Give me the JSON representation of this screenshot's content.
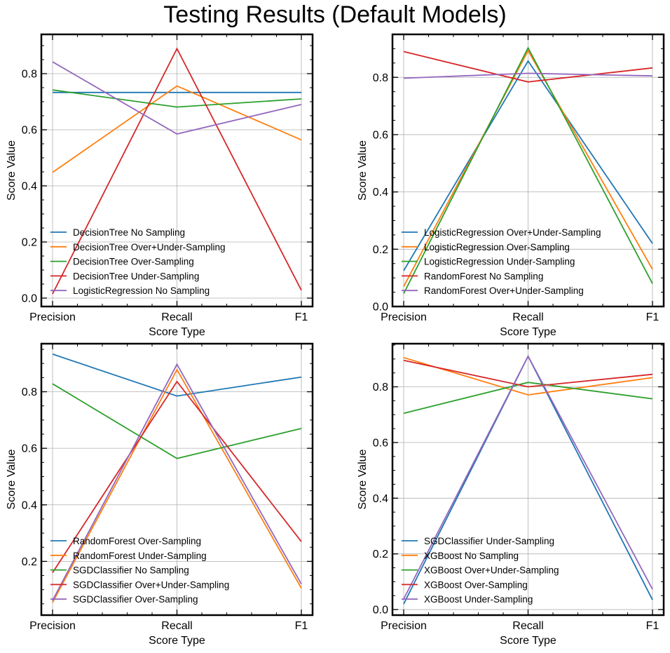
{
  "suptitle": "Testing Results (Default Models)",
  "chart_data": [
    {
      "type": "line",
      "categories": [
        "Precision",
        "Recall",
        "F1"
      ],
      "xlabel": "Score Type",
      "ylabel": "Score Value",
      "ylim": [
        -0.03,
        0.94
      ],
      "yticks": [
        "0.0",
        "0.2",
        "0.4",
        "0.6",
        "0.8"
      ],
      "grid": true,
      "legend": "lower-left",
      "series": [
        {
          "name": "DecisionTree No Sampling",
          "color": "#1f77b4",
          "values": [
            0.733,
            0.733,
            0.733
          ]
        },
        {
          "name": "DecisionTree Over+Under-Sampling",
          "color": "#ff7f0e",
          "values": [
            0.448,
            0.756,
            0.564
          ]
        },
        {
          "name": "DecisionTree Over-Sampling",
          "color": "#2ca02c",
          "values": [
            0.742,
            0.681,
            0.71
          ]
        },
        {
          "name": "DecisionTree Under-Sampling",
          "color": "#d62728",
          "values": [
            0.015,
            0.889,
            0.028
          ]
        },
        {
          "name": "LogisticRegression No Sampling",
          "color": "#9467bd",
          "values": [
            0.842,
            0.585,
            0.69
          ]
        }
      ]
    },
    {
      "type": "line",
      "categories": [
        "Precision",
        "Recall",
        "F1"
      ],
      "xlabel": "Score Type",
      "ylabel": "Score Value",
      "ylim": [
        0.0,
        0.95
      ],
      "yticks": [
        "0.0",
        "0.2",
        "0.4",
        "0.6",
        "0.8"
      ],
      "grid": true,
      "legend": "lower-left",
      "series": [
        {
          "name": "LogisticRegression Over+Under-Sampling",
          "color": "#1f77b4",
          "values": [
            0.125,
            0.857,
            0.22
          ]
        },
        {
          "name": "LogisticRegression Over-Sampling",
          "color": "#ff7f0e",
          "values": [
            0.07,
            0.893,
            0.13
          ]
        },
        {
          "name": "LogisticRegression Under-Sampling",
          "color": "#2ca02c",
          "values": [
            0.045,
            0.903,
            0.08
          ]
        },
        {
          "name": "RandomForest No Sampling",
          "color": "#d62728",
          "values": [
            0.89,
            0.784,
            0.833
          ]
        },
        {
          "name": "RandomForest Over+Under-Sampling",
          "color": "#9467bd",
          "values": [
            0.797,
            0.814,
            0.805
          ]
        }
      ]
    },
    {
      "type": "line",
      "categories": [
        "Precision",
        "Recall",
        "F1"
      ],
      "xlabel": "Score Type",
      "ylabel": "Score Value",
      "ylim": [
        0.01,
        0.97
      ],
      "yticks": [
        "0.2",
        "0.4",
        "0.6",
        "0.8"
      ],
      "grid": true,
      "legend": "lower-left",
      "series": [
        {
          "name": "RandomForest Over-Sampling",
          "color": "#1f77b4",
          "values": [
            0.933,
            0.785,
            0.852
          ]
        },
        {
          "name": "RandomForest Under-Sampling",
          "color": "#ff7f0e",
          "values": [
            0.055,
            0.878,
            0.105
          ]
        },
        {
          "name": "SGDClassifier No Sampling",
          "color": "#2ca02c",
          "values": [
            0.828,
            0.564,
            0.67
          ]
        },
        {
          "name": "SGDClassifier Over+Under-Sampling",
          "color": "#d62728",
          "values": [
            0.16,
            0.836,
            0.27
          ]
        },
        {
          "name": "SGDClassifier Over-Sampling",
          "color": "#9467bd",
          "values": [
            0.062,
            0.897,
            0.12
          ]
        }
      ]
    },
    {
      "type": "line",
      "categories": [
        "Precision",
        "Recall",
        "F1"
      ],
      "xlabel": "Score Type",
      "ylabel": "Score Value",
      "ylim": [
        -0.02,
        0.955
      ],
      "yticks": [
        "0.0",
        "0.2",
        "0.4",
        "0.6",
        "0.8"
      ],
      "grid": true,
      "legend": "lower-left",
      "series": [
        {
          "name": "SGDClassifier Under-Sampling",
          "color": "#1f77b4",
          "values": [
            0.02,
            0.91,
            0.035
          ]
        },
        {
          "name": "XGBoost No Sampling",
          "color": "#ff7f0e",
          "values": [
            0.905,
            0.771,
            0.833
          ]
        },
        {
          "name": "XGBoost Over+Under-Sampling",
          "color": "#2ca02c",
          "values": [
            0.705,
            0.816,
            0.757
          ]
        },
        {
          "name": "XGBoost Over-Sampling",
          "color": "#d62728",
          "values": [
            0.895,
            0.8,
            0.845
          ]
        },
        {
          "name": "XGBoost Under-Sampling",
          "color": "#9467bd",
          "values": [
            0.038,
            0.91,
            0.073
          ]
        }
      ]
    }
  ]
}
